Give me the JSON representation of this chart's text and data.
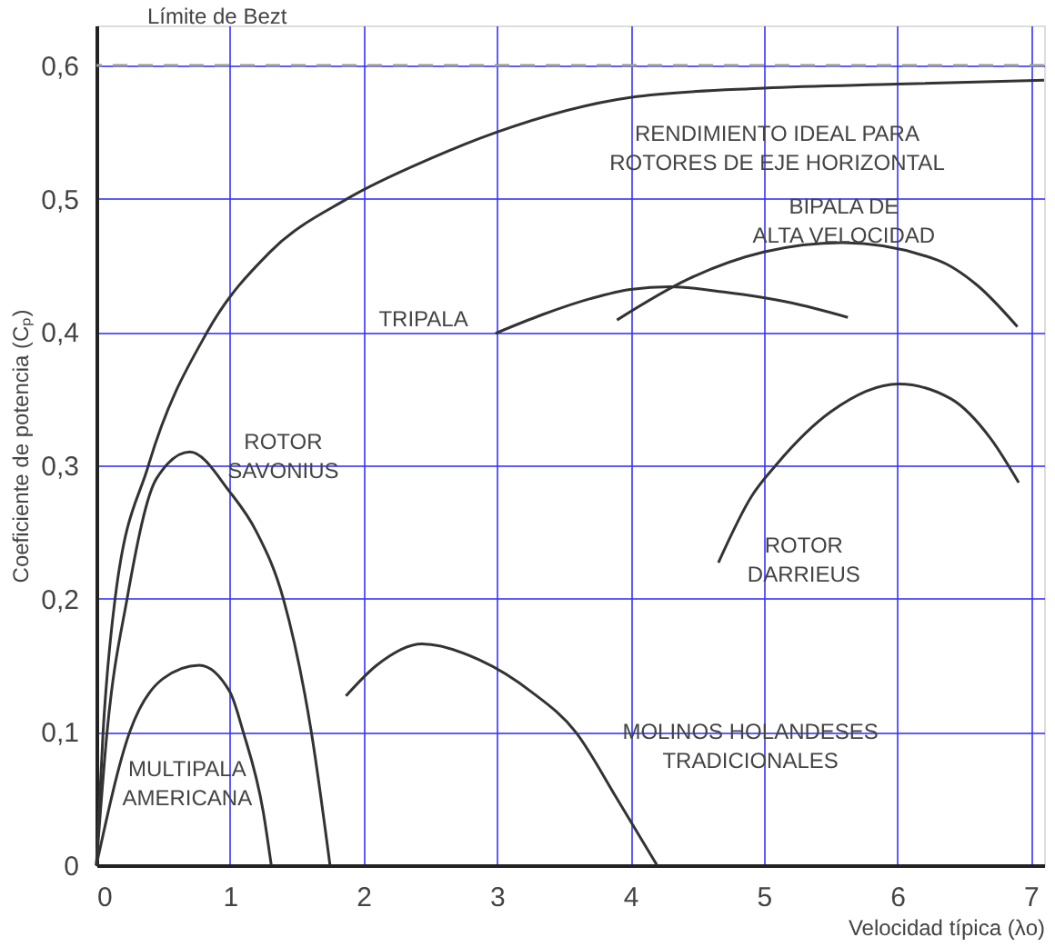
{
  "chart_data": {
    "type": "line",
    "xlabel": "Velocidad típica (λo)",
    "ylabel": "Coeficiente de potencia (Cₚ)",
    "xlim": [
      0,
      7.1
    ],
    "ylim": [
      0,
      0.63
    ],
    "xticks": [
      0,
      1,
      2,
      3,
      4,
      5,
      6,
      7
    ],
    "yticks": [
      0,
      {
        "value": 0.1,
        "label": "0,1"
      },
      {
        "value": 0.2,
        "label": "0,2"
      },
      {
        "value": 0.3,
        "label": "0,3"
      },
      {
        "value": 0.4,
        "label": "0,4"
      },
      {
        "value": 0.5,
        "label": "0,5"
      },
      {
        "value": 0.6,
        "label": "0,6"
      }
    ],
    "grid": true,
    "marker": "none",
    "line_style": "solid",
    "ref_lines": [
      {
        "axis": "y",
        "value": 0.6,
        "label": "Límite de Bezt",
        "color": "#999999",
        "line_style": "dashed"
      }
    ],
    "series": [
      {
        "name": "RENDIMIENTO IDEAL PARA\nROTORES DE EJE HORIZONTAL",
        "color": "#333333",
        "x": [
          0,
          0.05,
          0.14,
          0.39,
          0.83,
          1.3,
          1.88,
          2.5,
          3,
          4,
          5,
          6,
          7.1
        ],
        "values": [
          0,
          0.1,
          0.2,
          0.3,
          0.4,
          0.46,
          0.5,
          0.53,
          0.55,
          0.576,
          0.583,
          0.586,
          0.589
        ]
      },
      {
        "name": "TRIPALA",
        "color": "#333333",
        "x": [
          2.99,
          3.34,
          3.7,
          4.0,
          4.3,
          4.7,
          5.2,
          5.63
        ],
        "values": [
          0.399,
          0.413,
          0.425,
          0.432,
          0.434,
          0.43,
          0.422,
          0.411
        ]
      },
      {
        "name": "BIPALA DE\nALTA VELOCIDAD",
        "color": "#333333",
        "x": [
          3.9,
          4.44,
          5.0,
          5.59,
          6.3,
          6.6,
          6.9
        ],
        "values": [
          0.409,
          0.44,
          0.46,
          0.467,
          0.454,
          0.435,
          0.404
        ]
      },
      {
        "name": "ROTOR\nSAVONIUS",
        "color": "#333333",
        "x": [
          0,
          0.08,
          0.23,
          0.45,
          0.7,
          1.0,
          1.2,
          1.4,
          1.61,
          1.75
        ],
        "values": [
          0,
          0.1,
          0.2,
          0.29,
          0.31,
          0.28,
          0.25,
          0.2,
          0.1,
          0
        ]
      },
      {
        "name": "MULTIPALA\nAMERICANA",
        "color": "#333333",
        "x": [
          0,
          0.25,
          0.5,
          0.77,
          1.0,
          1.1,
          1.25,
          1.31
        ],
        "values": [
          0,
          0.1,
          0.14,
          0.15,
          0.13,
          0.1,
          0.04,
          0
        ]
      },
      {
        "name": "MOLINOS HOLANDESES\nTRADICIONALES",
        "color": "#333333",
        "x": [
          1.87,
          2.1,
          2.44,
          2.87,
          3.26,
          3.59,
          3.9,
          4.2
        ],
        "values": [
          0.127,
          0.15,
          0.166,
          0.154,
          0.13,
          0.1,
          0.05,
          0
        ]
      },
      {
        "name": "ROTOR\nDARRIEUS",
        "color": "#333333",
        "x": [
          4.66,
          4.91,
          5.09,
          5.5,
          6.01,
          6.4,
          6.7,
          6.91
        ],
        "values": [
          0.227,
          0.277,
          0.3,
          0.34,
          0.361,
          0.35,
          0.32,
          0.287
        ]
      }
    ]
  }
}
